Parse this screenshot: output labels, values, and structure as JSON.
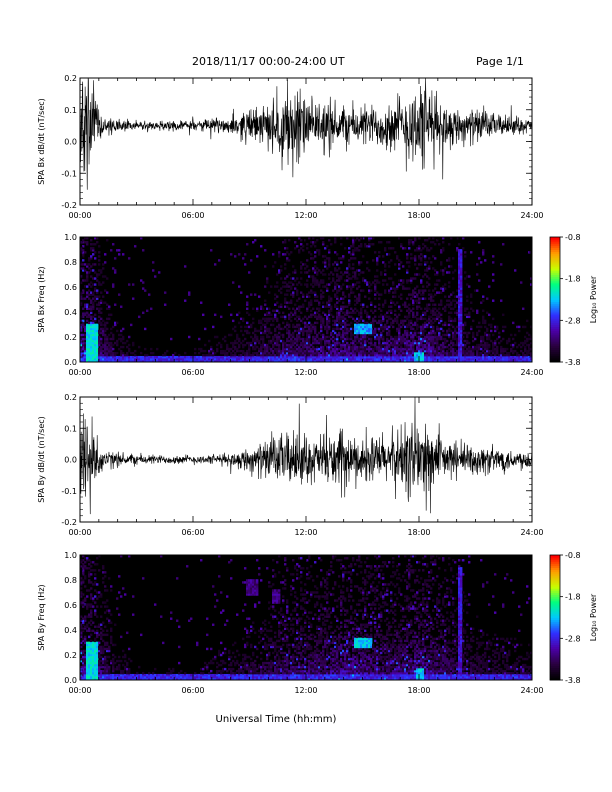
{
  "header": {
    "title": "2018/11/17   00:00-24:00 UT",
    "page": "Page 1/1"
  },
  "colors": {
    "background": "#ffffff",
    "trace": "#000000",
    "spectrogram_floor": "#000000",
    "colormap": [
      "#000000",
      "#2a0040",
      "#4b00a8",
      "#3030ff",
      "#00c8ff",
      "#00ff80",
      "#c8ff00",
      "#ffa000",
      "#ff0000"
    ]
  },
  "chart_data": [
    {
      "type": "line",
      "title": "",
      "xlabel": "",
      "ylabel": "SPA Bx dB/dt (nT/sec)",
      "xlim": [
        0,
        24
      ],
      "ylim": [
        -0.2,
        0.2
      ],
      "xticks": [
        "00:00",
        "06:00",
        "12:00",
        "18:00",
        "24:00"
      ],
      "yticks": [
        "-0.2",
        "-0.1",
        "0.0",
        "0.1",
        "0.2"
      ],
      "series": [
        {
          "x": [
            0,
            0.5,
            1,
            1.5,
            2,
            3,
            4,
            5,
            6,
            7,
            8,
            8.5,
            9,
            9.5,
            10,
            10.5,
            11,
            11.5,
            12,
            12.5,
            13,
            13.5,
            14,
            15,
            16,
            16.5,
            17,
            17.5,
            18,
            18.5,
            19,
            19.5,
            20,
            21,
            22,
            23,
            24
          ],
          "mean": [
            0.05,
            0.05,
            0.05,
            0.05,
            0.05,
            0.05,
            0.05,
            0.05,
            0.05,
            0.05,
            0.05,
            0.05,
            0.05,
            0.05,
            0.05,
            0.05,
            0.05,
            0.05,
            0.05,
            0.05,
            0.05,
            0.05,
            0.05,
            0.05,
            0.05,
            0.05,
            0.05,
            0.05,
            0.05,
            0.05,
            0.05,
            0.05,
            0.05,
            0.05,
            0.05,
            0.05,
            0.05
          ],
          "amplitude": [
            0.25,
            0.25,
            0.08,
            0.04,
            0.03,
            0.02,
            0.02,
            0.02,
            0.02,
            0.03,
            0.04,
            0.06,
            0.07,
            0.08,
            0.09,
            0.12,
            0.2,
            0.2,
            0.12,
            0.1,
            0.12,
            0.1,
            0.09,
            0.09,
            0.1,
            0.12,
            0.13,
            0.18,
            0.2,
            0.2,
            0.12,
            0.1,
            0.08,
            0.07,
            0.05,
            0.04,
            0.03
          ]
        }
      ]
    },
    {
      "type": "heatmap",
      "title": "",
      "xlabel": "",
      "ylabel": "SPA Bx Freq (Hz)",
      "colorbar_label": "Log₁₀ Power",
      "colorbar_ticks": [
        "-0.8",
        "-1.8",
        "-2.8",
        "-3.8"
      ],
      "crange": [
        -3.8,
        -0.8
      ],
      "xlim": [
        0,
        24
      ],
      "ylim": [
        0,
        1.0
      ],
      "xticks": [
        "00:00",
        "06:00",
        "12:00",
        "18:00",
        "24:00"
      ],
      "yticks": [
        "0.0",
        "0.2",
        "0.4",
        "0.6",
        "0.8",
        "1.0"
      ],
      "activity_hours": [
        0,
        1,
        2,
        3,
        4,
        5,
        6,
        7,
        8,
        9,
        10,
        11,
        12,
        13,
        14,
        15,
        16,
        17,
        18,
        19,
        20,
        21,
        22,
        23,
        24
      ],
      "activity_level": [
        1.0,
        0.65,
        0.3,
        0.22,
        0.2,
        0.2,
        0.2,
        0.25,
        0.3,
        0.35,
        0.45,
        0.6,
        0.6,
        0.65,
        0.75,
        0.7,
        0.6,
        0.65,
        0.8,
        0.6,
        0.5,
        0.4,
        0.35,
        0.3,
        0.3
      ],
      "features": [
        {
          "label": "low-frequency band",
          "t0": 0,
          "t1": 24,
          "f0": 0,
          "f1": 0.05,
          "value": -2.6
        },
        {
          "label": "onset burst",
          "t0": 0.3,
          "t1": 1.0,
          "f0": 0,
          "f1": 0.3,
          "value": -2.0
        },
        {
          "label": "enhanced band",
          "t0": 14.5,
          "t1": 15.5,
          "f0": 0.22,
          "f1": 0.3,
          "value": -2.2
        },
        {
          "label": "enhanced band",
          "t0": 17.7,
          "t1": 18.3,
          "f0": 0.0,
          "f1": 0.08,
          "value": -2.1
        },
        {
          "label": "narrow line",
          "t0": 20.1,
          "t1": 20.25,
          "f0": 0.0,
          "f1": 0.9,
          "value": -2.7
        }
      ]
    },
    {
      "type": "line",
      "title": "",
      "xlabel": "",
      "ylabel": "SPA By dB/dt (nT/sec)",
      "xlim": [
        0,
        24
      ],
      "ylim": [
        -0.2,
        0.2
      ],
      "xticks": [
        "00:00",
        "06:00",
        "12:00",
        "18:00",
        "24:00"
      ],
      "yticks": [
        "-0.2",
        "-0.1",
        "0.0",
        "0.1",
        "0.2"
      ],
      "series": [
        {
          "x": [
            0,
            0.5,
            1,
            1.5,
            2,
            3,
            4,
            5,
            6,
            7,
            8,
            8.5,
            9,
            9.5,
            10,
            10.5,
            11,
            11.5,
            12,
            12.5,
            13,
            13.5,
            14,
            15,
            16,
            16.5,
            17,
            17.5,
            18,
            18.5,
            19,
            19.5,
            20,
            21,
            22,
            23,
            24
          ],
          "mean": [
            0.0,
            0.0,
            0.0,
            0.0,
            0.0,
            0.0,
            0.0,
            0.0,
            0.0,
            0.0,
            0.0,
            0.0,
            0.0,
            0.0,
            0.0,
            0.0,
            0.0,
            0.0,
            0.0,
            0.0,
            0.0,
            0.0,
            0.0,
            0.0,
            0.0,
            0.0,
            0.0,
            0.0,
            0.0,
            0.0,
            0.0,
            0.0,
            0.0,
            0.0,
            0.0,
            0.0,
            0.0
          ],
          "amplitude": [
            0.25,
            0.25,
            0.07,
            0.04,
            0.03,
            0.025,
            0.02,
            0.02,
            0.02,
            0.02,
            0.03,
            0.04,
            0.06,
            0.07,
            0.08,
            0.1,
            0.12,
            0.12,
            0.1,
            0.1,
            0.11,
            0.12,
            0.1,
            0.1,
            0.11,
            0.12,
            0.14,
            0.2,
            0.2,
            0.15,
            0.1,
            0.09,
            0.08,
            0.07,
            0.06,
            0.05,
            0.04
          ]
        }
      ]
    },
    {
      "type": "heatmap",
      "title": "",
      "xlabel": "Universal Time (hh:mm)",
      "ylabel": "SPA By Freq (Hz)",
      "colorbar_label": "Log₁₀ Power",
      "colorbar_ticks": [
        "-0.8",
        "-1.8",
        "-2.8",
        "-3.8"
      ],
      "crange": [
        -3.8,
        -0.8
      ],
      "xlim": [
        0,
        24
      ],
      "ylim": [
        0,
        1.0
      ],
      "xticks": [
        "00:00",
        "06:00",
        "12:00",
        "18:00",
        "24:00"
      ],
      "yticks": [
        "0.0",
        "0.2",
        "0.4",
        "0.6",
        "0.8",
        "1.0"
      ],
      "activity_hours": [
        0,
        1,
        2,
        3,
        4,
        5,
        6,
        7,
        8,
        9,
        10,
        11,
        12,
        13,
        14,
        15,
        16,
        17,
        18,
        19,
        20,
        21,
        22,
        23,
        24
      ],
      "activity_level": [
        1.0,
        0.65,
        0.3,
        0.22,
        0.2,
        0.2,
        0.2,
        0.25,
        0.3,
        0.35,
        0.45,
        0.55,
        0.6,
        0.65,
        0.75,
        0.72,
        0.6,
        0.65,
        0.8,
        0.6,
        0.5,
        0.4,
        0.35,
        0.3,
        0.3
      ],
      "features": [
        {
          "label": "low-frequency band",
          "t0": 0,
          "t1": 24,
          "f0": 0,
          "f1": 0.05,
          "value": -2.6
        },
        {
          "label": "onset burst",
          "t0": 0.3,
          "t1": 1.0,
          "f0": 0,
          "f1": 0.3,
          "value": -2.0
        },
        {
          "label": "enhanced band",
          "t0": 14.5,
          "t1": 15.5,
          "f0": 0.26,
          "f1": 0.34,
          "value": -2.1
        },
        {
          "label": "enhanced band",
          "t0": 17.8,
          "t1": 18.3,
          "f0": 0.0,
          "f1": 0.1,
          "value": -2.1
        },
        {
          "label": "patch",
          "t0": 8.8,
          "t1": 9.4,
          "f0": 0.68,
          "f1": 0.8,
          "value": -3.0
        },
        {
          "label": "patch",
          "t0": 10.2,
          "t1": 10.6,
          "f0": 0.62,
          "f1": 0.72,
          "value": -3.0
        },
        {
          "label": "narrow line",
          "t0": 20.1,
          "t1": 20.25,
          "f0": 0.0,
          "f1": 0.9,
          "value": -2.7
        }
      ]
    }
  ]
}
